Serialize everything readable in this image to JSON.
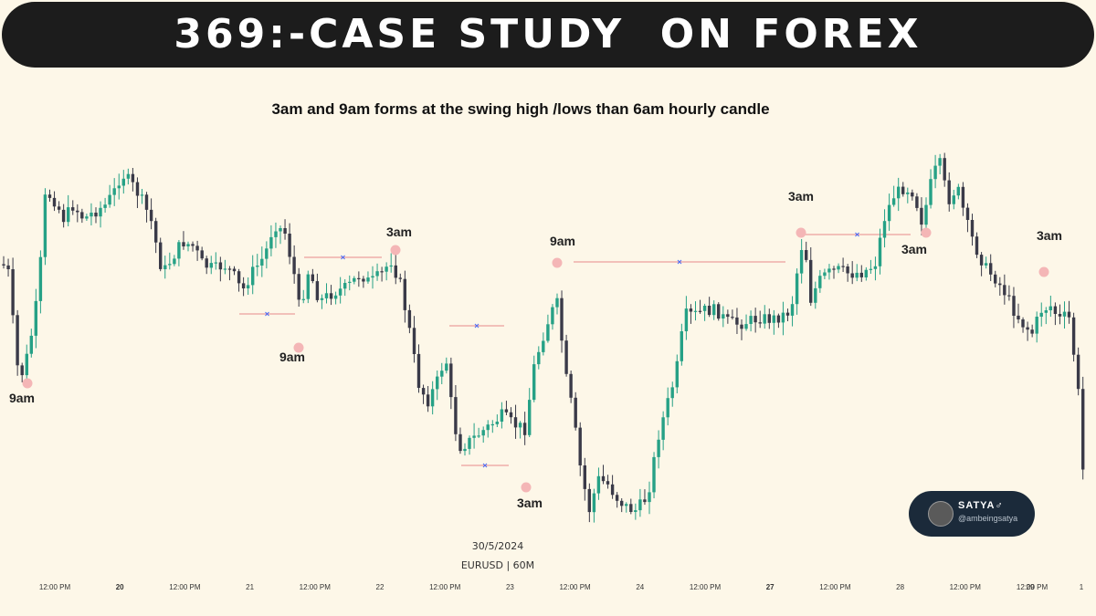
{
  "banner": {
    "title": "369:-CASE STUDY  ON FOREX"
  },
  "subtitle": "3am and 9am forms at the swing high /lows than 6am hourly candle",
  "chart_info": {
    "date": "30/5/2024",
    "symbol_line": "EURUSD | 60M"
  },
  "colors": {
    "bull": "#26a186",
    "bear": "#3a3a48",
    "marker": "#f4b6b6",
    "level_line": "#e88a8a",
    "level_x": "#4a6cf7",
    "background": "#fdf7e8"
  },
  "badge": {
    "name": "SATYA♂",
    "handle": "@ambeingsatya"
  },
  "chart_data": {
    "type": "candlestick",
    "symbol": "EURUSD",
    "timeframe": "60M",
    "x_ticks": [
      {
        "label": "12:00 PM",
        "bold": false
      },
      {
        "label": "20",
        "bold": true
      },
      {
        "label": "12:00 PM",
        "bold": false
      },
      {
        "label": "21",
        "bold": false
      },
      {
        "label": "12:00 PM",
        "bold": false
      },
      {
        "label": "22",
        "bold": false
      },
      {
        "label": "12:00 PM",
        "bold": false
      },
      {
        "label": "23",
        "bold": false
      },
      {
        "label": "12:00 PM",
        "bold": false
      },
      {
        "label": "24",
        "bold": false
      },
      {
        "label": "12:00 PM",
        "bold": false
      },
      {
        "label": "27",
        "bold": true
      },
      {
        "label": "12:00 PM",
        "bold": false
      },
      {
        "label": "28",
        "bold": false
      },
      {
        "label": "12:00 PM",
        "bold": false
      },
      {
        "label": "29",
        "bold": false
      },
      {
        "label": "12:00 PM",
        "bold": false
      },
      {
        "label": "1",
        "bold": false
      }
    ],
    "close_path": [
      [
        0,
        285
      ],
      [
        10,
        300
      ],
      [
        18,
        400
      ],
      [
        25,
        410
      ],
      [
        33,
        375
      ],
      [
        42,
        320
      ],
      [
        50,
        210
      ],
      [
        60,
        220
      ],
      [
        70,
        240
      ],
      [
        80,
        225
      ],
      [
        92,
        240
      ],
      [
        103,
        232
      ],
      [
        115,
        225
      ],
      [
        125,
        210
      ],
      [
        133,
        190
      ],
      [
        143,
        200
      ],
      [
        153,
        215
      ],
      [
        165,
        240
      ],
      [
        178,
        300
      ],
      [
        190,
        280
      ],
      [
        200,
        265
      ],
      [
        212,
        270
      ],
      [
        222,
        290
      ],
      [
        235,
        295
      ],
      [
        245,
        290
      ],
      [
        255,
        300
      ],
      [
        265,
        320
      ],
      [
        275,
        300
      ],
      [
        290,
        280
      ],
      [
        300,
        245
      ],
      [
        312,
        255
      ],
      [
        322,
        300
      ],
      [
        328,
        340
      ],
      [
        338,
        295
      ],
      [
        350,
        330
      ],
      [
        365,
        320
      ],
      [
        380,
        315
      ],
      [
        395,
        300
      ],
      [
        405,
        310
      ],
      [
        418,
        300
      ],
      [
        428,
        285
      ],
      [
        438,
        310
      ],
      [
        448,
        360
      ],
      [
        458,
        420
      ],
      [
        468,
        440
      ],
      [
        478,
        420
      ],
      [
        488,
        390
      ],
      [
        495,
        450
      ],
      [
        502,
        490
      ],
      [
        512,
        485
      ],
      [
        525,
        475
      ],
      [
        538,
        465
      ],
      [
        550,
        455
      ],
      [
        562,
        465
      ],
      [
        575,
        470
      ],
      [
        585,
        400
      ],
      [
        597,
        360
      ],
      [
        605,
        340
      ],
      [
        612,
        330
      ],
      [
        617,
        400
      ],
      [
        627,
        450
      ],
      [
        635,
        510
      ],
      [
        645,
        560
      ],
      [
        655,
        525
      ],
      [
        665,
        530
      ],
      [
        675,
        545
      ],
      [
        685,
        555
      ],
      [
        695,
        560
      ],
      [
        705,
        550
      ],
      [
        712,
        530
      ],
      [
        720,
        480
      ],
      [
        730,
        445
      ],
      [
        740,
        410
      ],
      [
        750,
        345
      ],
      [
        760,
        345
      ],
      [
        772,
        340
      ],
      [
        785,
        340
      ],
      [
        795,
        352
      ],
      [
        808,
        355
      ],
      [
        820,
        352
      ],
      [
        832,
        348
      ],
      [
        845,
        350
      ],
      [
        858,
        345
      ],
      [
        866,
        340
      ],
      [
        874,
        290
      ],
      [
        880,
        258
      ],
      [
        888,
        330
      ],
      [
        895,
        310
      ],
      [
        905,
        300
      ],
      [
        918,
        296
      ],
      [
        930,
        300
      ],
      [
        945,
        298
      ],
      [
        958,
        290
      ],
      [
        968,
        240
      ],
      [
        978,
        215
      ],
      [
        990,
        205
      ],
      [
        1000,
        210
      ],
      [
        1010,
        245
      ],
      [
        1018,
        205
      ],
      [
        1028,
        175
      ],
      [
        1038,
        220
      ],
      [
        1048,
        205
      ],
      [
        1060,
        250
      ],
      [
        1070,
        275
      ],
      [
        1080,
        295
      ],
      [
        1090,
        305
      ],
      [
        1100,
        320
      ],
      [
        1110,
        340
      ],
      [
        1120,
        355
      ],
      [
        1130,
        365
      ],
      [
        1140,
        340
      ],
      [
        1150,
        335
      ],
      [
        1160,
        350
      ],
      [
        1170,
        345
      ],
      [
        1180,
        420
      ],
      [
        1186,
        520
      ]
    ],
    "annotations": [
      {
        "label": "9am",
        "type": "swing-low"
      },
      {
        "label": "9am",
        "type": "swing-low"
      },
      {
        "label": "3am",
        "type": "swing-high"
      },
      {
        "label": "3am",
        "type": "swing-low"
      },
      {
        "label": "9am",
        "type": "swing-high"
      },
      {
        "label": "3am",
        "type": "swing-high"
      },
      {
        "label": "3am",
        "type": "swing-low"
      },
      {
        "label": "3am",
        "type": "swing-high"
      }
    ]
  }
}
